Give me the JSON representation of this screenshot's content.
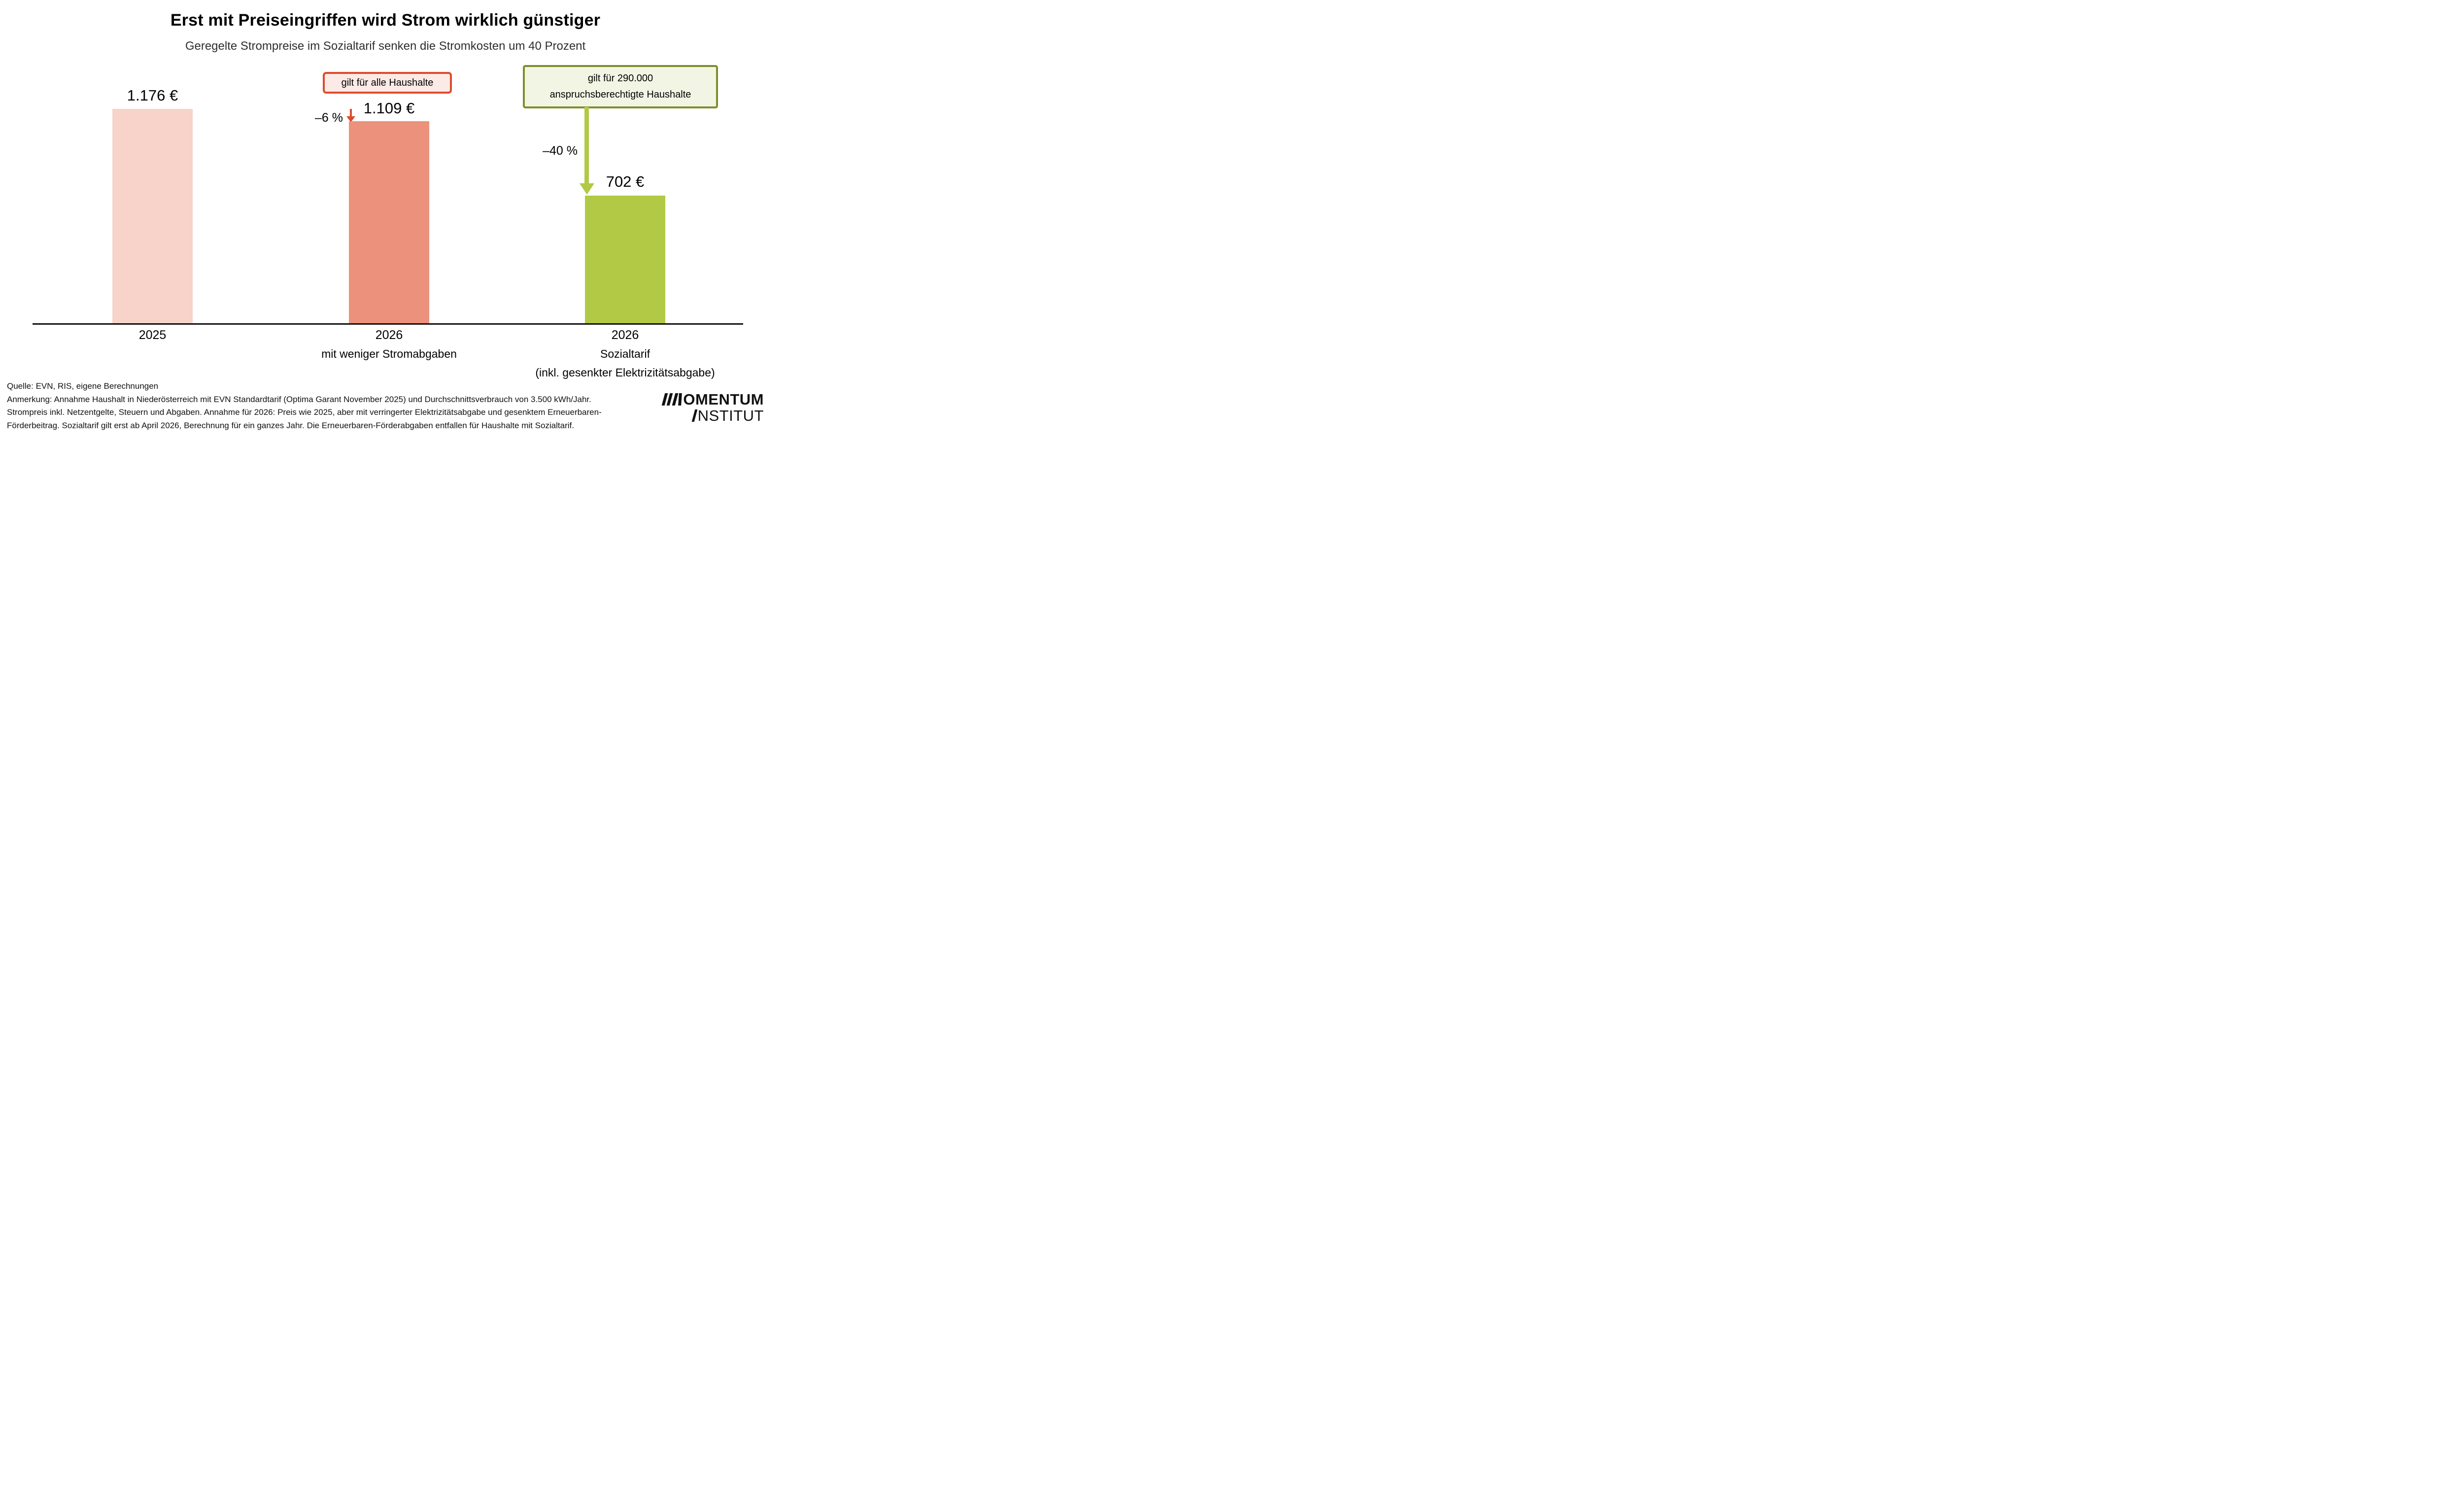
{
  "title": "Erst mit Preiseingriffen wird Strom wirklich günstiger",
  "subtitle": "Geregelte Strompreise im Sozialtarif senken die Stromkosten um 40 Prozent",
  "chart_data": {
    "type": "bar",
    "title": "Erst mit Preiseingriffen wird Strom wirklich günstiger",
    "subtitle": "Geregelte Strompreise im Sozialtarif senken die Stromkosten um 40 Prozent",
    "categories": [
      "2025",
      "2026 mit weniger Stromabgaben",
      "2026 Sozialtarif (inkl. gesenkter Elektrizitätsabgabe)"
    ],
    "values": [
      1176,
      1109,
      702
    ],
    "value_labels": [
      "1.176 €",
      "1.109 €",
      "702 €"
    ],
    "bar_colors": [
      "#f7d3c9",
      "#ec917c",
      "#b1c944"
    ],
    "ylim": [
      0,
      1250
    ],
    "grid": false,
    "legend": "none",
    "axis_color": "#111111",
    "x_axis_labels": [
      {
        "line1": "2025",
        "line2": "",
        "line3": ""
      },
      {
        "line1": "2026",
        "line2": "mit weniger Stromabgaben",
        "line3": ""
      },
      {
        "line1": "2026",
        "line2": "Sozialtarif",
        "line3": "(inkl. gesenkter Elektrizitätsabgabe)"
      }
    ]
  },
  "annotations": {
    "all_households_box": {
      "text": "gilt für alle Haushalte",
      "border_color": "#dd4b2c",
      "fill_color": "#fbeae6"
    },
    "eligible_households_box": {
      "line1": "gilt für 290.000",
      "line2": "anspruchsberechtigte Haushalte",
      "border_color": "#7c8f2b",
      "fill_color": "#f3f5e4"
    },
    "pct_change_2026": {
      "label": "–6 %",
      "arrow_color": "#e0492c"
    },
    "pct_change_social": {
      "label": "–40 %",
      "arrow_color": "#b1c944"
    }
  },
  "footer": {
    "source": "Quelle: EVN, RIS, eigene Berechnungen",
    "note_line1": "Anmerkung: Annahme Haushalt in Niederösterreich mit EVN Standardtarif (Optima Garant November 2025) und Durchschnittsverbrauch von 3.500 kWh/Jahr.",
    "note_line2": "Strompreis inkl. Netzentgelte, Steuern und Abgaben. Annahme für 2026: Preis wie 2025, aber mit verringerter Elektrizitätsabgabe und gesenktem Erneuerbaren-",
    "note_line3": "Förderbeitrag. Sozialtarif gilt erst ab April 2026, Berechnung für ein ganzes Jahr. Die Erneuerbaren-Förderabgaben entfallen für Haushalte mit Sozialtarif."
  },
  "logo": {
    "name": "Momentum Institut",
    "line1_text": "OMENTUM",
    "line2_text": "NSTITUT"
  }
}
